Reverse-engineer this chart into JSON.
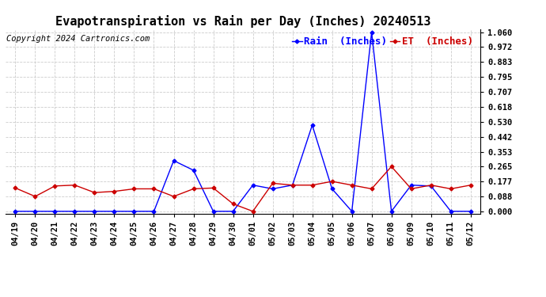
{
  "title": "Evapotranspiration vs Rain per Day (Inches) 20240513",
  "copyright": "Copyright 2024 Cartronics.com",
  "legend_rain": "Rain  (Inches)",
  "legend_et": "ET  (Inches)",
  "x_labels": [
    "04/19",
    "04/20",
    "04/21",
    "04/22",
    "04/23",
    "04/24",
    "04/25",
    "04/26",
    "04/27",
    "04/28",
    "04/29",
    "04/30",
    "05/01",
    "05/02",
    "05/03",
    "05/04",
    "05/05",
    "05/06",
    "05/07",
    "05/08",
    "05/09",
    "05/10",
    "05/11",
    "05/12"
  ],
  "rain": [
    0.0,
    0.0,
    0.0,
    0.0,
    0.0,
    0.0,
    0.0,
    0.0,
    0.3,
    0.243,
    0.0,
    0.0,
    0.155,
    0.133,
    0.155,
    0.51,
    0.133,
    0.0,
    1.06,
    0.0,
    0.155,
    0.15,
    0.0,
    0.0
  ],
  "et": [
    0.138,
    0.088,
    0.15,
    0.155,
    0.111,
    0.118,
    0.133,
    0.133,
    0.088,
    0.133,
    0.138,
    0.044,
    0.0,
    0.166,
    0.155,
    0.155,
    0.177,
    0.155,
    0.133,
    0.265,
    0.133,
    0.155,
    0.133,
    0.155
  ],
  "ylim": [
    0.0,
    1.06
  ],
  "yticks": [
    0.0,
    0.088,
    0.177,
    0.265,
    0.353,
    0.442,
    0.53,
    0.618,
    0.707,
    0.795,
    0.883,
    0.972,
    1.06
  ],
  "rain_color": "#0000ff",
  "et_color": "#cc0000",
  "grid_color": "#cccccc",
  "bg_color": "#ffffff",
  "title_fontsize": 11,
  "copyright_fontsize": 7.5,
  "legend_fontsize": 9,
  "tick_fontsize": 7.5
}
